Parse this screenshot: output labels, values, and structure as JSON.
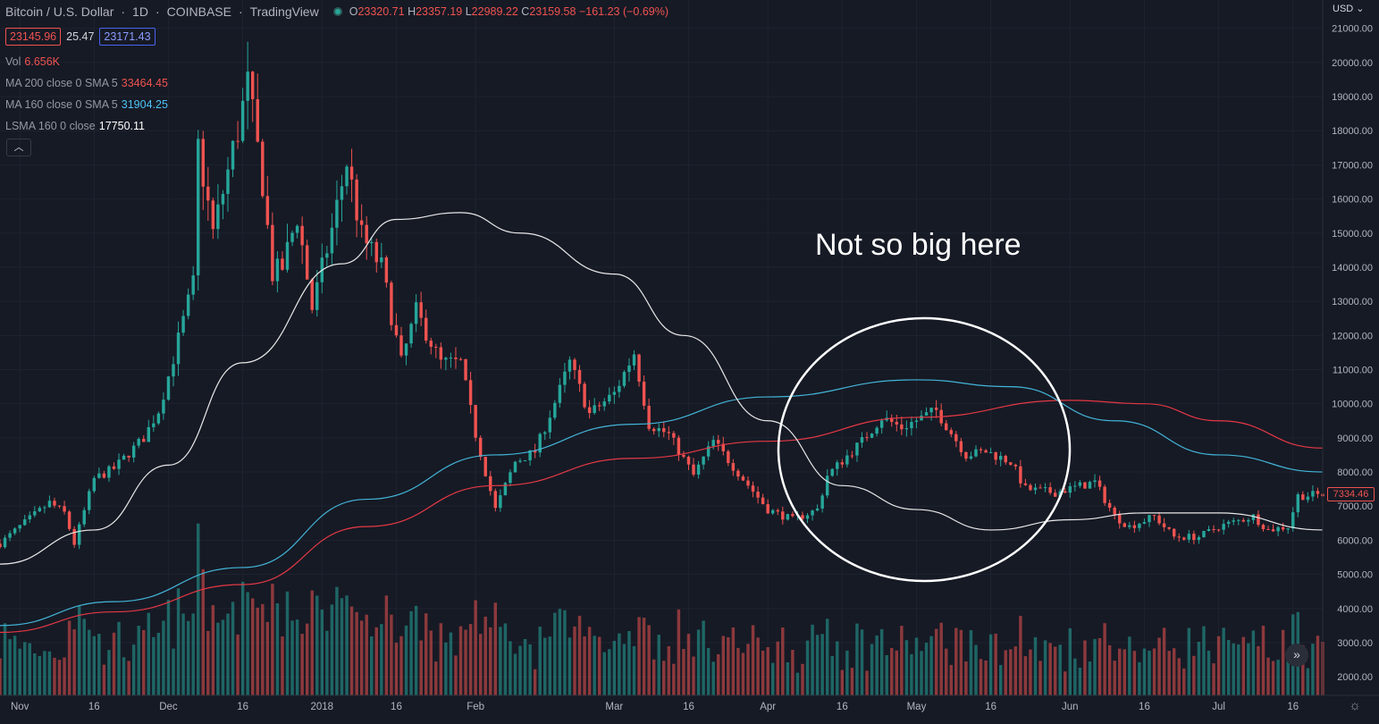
{
  "header": {
    "symbol": "Bitcoin / U.S. Dollar",
    "sep1": "·",
    "interval": "1D",
    "sep2": "·",
    "exchange": "COINBASE",
    "sep3": "·",
    "source": "TradingView",
    "ohlc": {
      "o_label": "O",
      "o": "23320.71",
      "h_label": "H",
      "h": "23357.19",
      "l_label": "L",
      "l": "22989.22",
      "c_label": "C",
      "c": "23159.58",
      "change": "−161.23 (−0.69%)"
    }
  },
  "price_boxes": {
    "bid": "23145.96",
    "spread": "25.47",
    "ask": "23171.43"
  },
  "indicators": [
    {
      "name": "Vol",
      "value": "6.656K",
      "color": "#ef5350"
    },
    {
      "name": "MA 200 close 0 SMA 5",
      "value": "33464.45",
      "color": "#ef5350"
    },
    {
      "name": "MA 160 close 0 SMA 5",
      "value": "31904.25",
      "color": "#4fc3f7"
    },
    {
      "name": "LSMA 160 0 close",
      "value": "17750.11",
      "color": "#ffffff"
    }
  ],
  "controls": {
    "collapse_glyph": "︿",
    "currency": "USD ⌄",
    "scroll_glyph": "»",
    "gear_glyph": "☼"
  },
  "last_price_label": "7334.46",
  "annotation": "Not so big here",
  "colors": {
    "up": "#26a69a",
    "down": "#ef5350",
    "ma200": "#e53945",
    "ma160": "#43b5d8",
    "lsma": "#e8e8e8",
    "background": "#161a25",
    "grid": "#1f2330"
  },
  "chart_data": {
    "type": "candlestick",
    "x_tick_labels": [
      "Nov",
      "16",
      "Dec",
      "16",
      "2018",
      "16",
      "Feb",
      "Mar",
      "16",
      "Apr",
      "16",
      "May",
      "16",
      "Jun",
      "16",
      "Jul",
      "16"
    ],
    "x_tick_dates": [
      "2017-11-01",
      "2017-11-16",
      "2017-12-01",
      "2017-12-16",
      "2018-01-01",
      "2018-01-16",
      "2018-02-01",
      "2018-03-01",
      "2018-03-16",
      "2018-04-01",
      "2018-04-16",
      "2018-05-01",
      "2018-05-16",
      "2018-06-01",
      "2018-06-16",
      "2018-07-01",
      "2018-07-16"
    ],
    "y_tick_labels": [
      "21000.00",
      "20000.00",
      "19000.00",
      "18000.00",
      "17000.00",
      "16000.00",
      "15000.00",
      "14000.00",
      "13000.00",
      "12000.00",
      "11000.00",
      "10000.00",
      "9000.00",
      "8000.00",
      "7000.00",
      "6000.00",
      "5000.00",
      "4000.00",
      "3000.00",
      "2000.00"
    ],
    "y_range": [
      1600,
      21400
    ],
    "x_range": [
      "2017-10-28",
      "2018-07-22"
    ],
    "close_keyframes": [
      [
        "2017-10-28",
        5900
      ],
      [
        "2017-11-01",
        6400
      ],
      [
        "2017-11-07",
        7100
      ],
      [
        "2017-11-10",
        6800
      ],
      [
        "2017-11-12",
        5900
      ],
      [
        "2017-11-16",
        7800
      ],
      [
        "2017-11-20",
        8100
      ],
      [
        "2017-11-26",
        9000
      ],
      [
        "2017-11-29",
        9800
      ],
      [
        "2017-12-01",
        10800
      ],
      [
        "2017-12-06",
        13500
      ],
      [
        "2017-12-07",
        17500
      ],
      [
        "2017-12-10",
        15000
      ],
      [
        "2017-12-13",
        16800
      ],
      [
        "2017-12-17",
        19300
      ],
      [
        "2017-12-20",
        16500
      ],
      [
        "2017-12-22",
        13800
      ],
      [
        "2017-12-24",
        14000
      ],
      [
        "2017-12-27",
        15500
      ],
      [
        "2017-12-30",
        12800
      ],
      [
        "2018-01-03",
        15100
      ],
      [
        "2018-01-06",
        17100
      ],
      [
        "2018-01-09",
        14900
      ],
      [
        "2018-01-13",
        14000
      ],
      [
        "2018-01-17",
        11200
      ],
      [
        "2018-01-20",
        12700
      ],
      [
        "2018-01-25",
        11200
      ],
      [
        "2018-01-29",
        11200
      ],
      [
        "2018-02-01",
        9100
      ],
      [
        "2018-02-05",
        6900
      ],
      [
        "2018-02-09",
        8300
      ],
      [
        "2018-02-13",
        8600
      ],
      [
        "2018-02-18",
        10400
      ],
      [
        "2018-02-20",
        11200
      ],
      [
        "2018-02-24",
        9700
      ],
      [
        "2018-03-01",
        10300
      ],
      [
        "2018-03-05",
        11500
      ],
      [
        "2018-03-08",
        9400
      ],
      [
        "2018-03-12",
        9100
      ],
      [
        "2018-03-17",
        7900
      ],
      [
        "2018-03-21",
        8900
      ],
      [
        "2018-03-27",
        7800
      ],
      [
        "2018-04-01",
        6900
      ],
      [
        "2018-04-06",
        6600
      ],
      [
        "2018-04-11",
        6900
      ],
      [
        "2018-04-13",
        7900
      ],
      [
        "2018-04-20",
        8900
      ],
      [
        "2018-04-24",
        9600
      ],
      [
        "2018-04-28",
        9300
      ],
      [
        "2018-05-05",
        9800
      ],
      [
        "2018-05-11",
        8500
      ],
      [
        "2018-05-15",
        8600
      ],
      [
        "2018-05-20",
        8300
      ],
      [
        "2018-05-23",
        7500
      ],
      [
        "2018-05-29",
        7400
      ],
      [
        "2018-06-06",
        7700
      ],
      [
        "2018-06-10",
        6700
      ],
      [
        "2018-06-13",
        6400
      ],
      [
        "2018-06-18",
        6700
      ],
      [
        "2018-06-22",
        6100
      ],
      [
        "2018-06-27",
        6100
      ],
      [
        "2018-07-01",
        6400
      ],
      [
        "2018-07-08",
        6700
      ],
      [
        "2018-07-11",
        6300
      ],
      [
        "2018-07-15",
        6400
      ],
      [
        "2018-07-17",
        7300
      ],
      [
        "2018-07-21",
        7334
      ]
    ],
    "series": [
      {
        "name": "MA 200 close 0 SMA 5",
        "points": [
          [
            "2017-10-28",
            3300
          ],
          [
            "2017-11-20",
            3900
          ],
          [
            "2017-12-16",
            4700
          ],
          [
            "2018-01-10",
            6400
          ],
          [
            "2018-02-05",
            7600
          ],
          [
            "2018-03-05",
            8400
          ],
          [
            "2018-04-01",
            8900
          ],
          [
            "2018-05-01",
            9600
          ],
          [
            "2018-06-01",
            10100
          ],
          [
            "2018-06-16",
            10000
          ],
          [
            "2018-07-01",
            9500
          ],
          [
            "2018-07-22",
            8700
          ]
        ]
      },
      {
        "name": "MA 160 close 0 SMA 5",
        "points": [
          [
            "2017-10-28",
            3500
          ],
          [
            "2017-11-20",
            4200
          ],
          [
            "2017-12-16",
            5200
          ],
          [
            "2018-01-10",
            7200
          ],
          [
            "2018-02-05",
            8500
          ],
          [
            "2018-03-05",
            9400
          ],
          [
            "2018-04-01",
            10200
          ],
          [
            "2018-05-01",
            10700
          ],
          [
            "2018-05-20",
            10500
          ],
          [
            "2018-06-10",
            9500
          ],
          [
            "2018-07-01",
            8500
          ],
          [
            "2018-07-22",
            8000
          ]
        ]
      },
      {
        "name": "LSMA 160 0 close",
        "points": [
          [
            "2017-10-28",
            5300
          ],
          [
            "2017-11-16",
            6300
          ],
          [
            "2017-12-01",
            8200
          ],
          [
            "2017-12-16",
            11200
          ],
          [
            "2018-01-05",
            14100
          ],
          [
            "2018-01-16",
            15400
          ],
          [
            "2018-01-29",
            15600
          ],
          [
            "2018-02-10",
            15000
          ],
          [
            "2018-03-01",
            13800
          ],
          [
            "2018-03-15",
            12000
          ],
          [
            "2018-04-01",
            9500
          ],
          [
            "2018-04-16",
            7600
          ],
          [
            "2018-05-01",
            6900
          ],
          [
            "2018-05-16",
            6300
          ],
          [
            "2018-06-01",
            6600
          ],
          [
            "2018-06-16",
            6800
          ],
          [
            "2018-07-01",
            6800
          ],
          [
            "2018-07-22",
            6300
          ]
        ]
      }
    ],
    "volume_axis_max": 7000
  }
}
